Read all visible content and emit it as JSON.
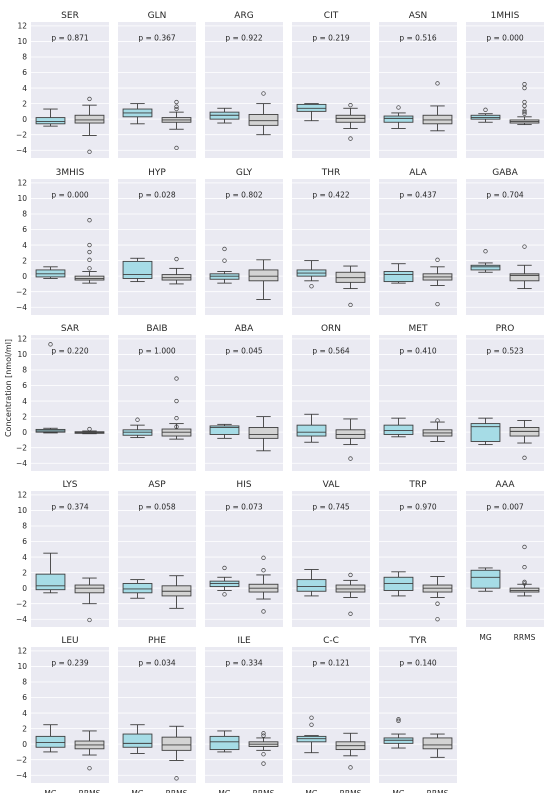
{
  "figure": {
    "ylabel": "Concentration [nmol/ml]",
    "group_colors": {
      "MG": "#a6dce6",
      "RRMS": "#d3d3d3"
    },
    "panel_bg": "#eaeaf2",
    "grid_color": "#ffffff"
  },
  "chart_data": {
    "type": "box",
    "categories": [
      "MG",
      "RRMS"
    ],
    "ylim": [
      -5,
      12.5
    ],
    "yticks": [
      -4,
      -2,
      0,
      2,
      4,
      6,
      8,
      10,
      12
    ],
    "grid": true,
    "panels": [
      {
        "title": "SER",
        "p": "p = 0.871",
        "boxes": [
          {
            "q1": -0.6,
            "med": -0.3,
            "q3": 0.2,
            "lo": -0.9,
            "hi": 1.3,
            "out": []
          },
          {
            "q1": -0.5,
            "med": -0.1,
            "q3": 0.5,
            "lo": -2.1,
            "hi": 1.8,
            "out": [
              2.6,
              -4.2
            ]
          }
        ]
      },
      {
        "title": "GLN",
        "p": "p = 0.367",
        "boxes": [
          {
            "q1": 0.3,
            "med": 0.8,
            "q3": 1.3,
            "lo": -0.6,
            "hi": 2.0,
            "out": []
          },
          {
            "q1": -0.4,
            "med": -0.1,
            "q3": 0.2,
            "lo": -1.3,
            "hi": 0.9,
            "out": [
              2.2,
              1.6,
              1.3,
              -3.7
            ]
          }
        ]
      },
      {
        "title": "ARG",
        "p": "p = 0.922",
        "boxes": [
          {
            "q1": 0.0,
            "med": 0.5,
            "q3": 0.9,
            "lo": -0.5,
            "hi": 1.4,
            "out": []
          },
          {
            "q1": -0.8,
            "med": -0.2,
            "q3": 0.6,
            "lo": -2.0,
            "hi": 2.0,
            "out": [
              3.3
            ]
          }
        ]
      },
      {
        "title": "CIT",
        "p": "p = 0.219",
        "boxes": [
          {
            "q1": 1.0,
            "med": 1.4,
            "q3": 1.9,
            "lo": -0.2,
            "hi": 2.0,
            "out": []
          },
          {
            "q1": -0.4,
            "med": 0.1,
            "q3": 0.5,
            "lo": -1.2,
            "hi": 1.4,
            "out": [
              1.8,
              -2.5
            ]
          }
        ]
      },
      {
        "title": "ASN",
        "p": "p = 0.516",
        "boxes": [
          {
            "q1": -0.4,
            "med": 0.1,
            "q3": 0.4,
            "lo": -1.2,
            "hi": 0.8,
            "out": [
              1.5
            ]
          },
          {
            "q1": -0.6,
            "med": -0.1,
            "q3": 0.5,
            "lo": -1.5,
            "hi": 1.7,
            "out": [
              4.6
            ]
          }
        ]
      },
      {
        "title": "1MHIS",
        "p": "p = 0.000",
        "boxes": [
          {
            "q1": 0.0,
            "med": 0.2,
            "q3": 0.5,
            "lo": -0.4,
            "hi": 0.7,
            "out": [
              1.2
            ]
          },
          {
            "q1": -0.5,
            "med": -0.3,
            "q3": -0.1,
            "lo": -0.7,
            "hi": 0.3,
            "out": [
              4.5,
              4.0,
              2.2,
              1.7,
              1.1,
              0.9,
              0.7
            ]
          }
        ]
      },
      {
        "title": "3MHIS",
        "p": "p = 0.000",
        "boxes": [
          {
            "q1": -0.1,
            "med": 0.3,
            "q3": 0.8,
            "lo": -0.3,
            "hi": 1.2,
            "out": []
          },
          {
            "q1": -0.5,
            "med": -0.3,
            "q3": 0.0,
            "lo": -0.9,
            "hi": 0.6,
            "out": [
              7.2,
              4.0,
              3.1,
              2.1,
              1.0
            ]
          }
        ]
      },
      {
        "title": "HYP",
        "p": "p = 0.028",
        "boxes": [
          {
            "q1": -0.3,
            "med": 0.2,
            "q3": 1.9,
            "lo": -0.7,
            "hi": 2.3,
            "out": []
          },
          {
            "q1": -0.5,
            "med": -0.2,
            "q3": 0.2,
            "lo": -1.0,
            "hi": 1.0,
            "out": [
              2.2
            ]
          }
        ]
      },
      {
        "title": "GLY",
        "p": "p = 0.802",
        "boxes": [
          {
            "q1": -0.4,
            "med": 0.0,
            "q3": 0.3,
            "lo": -0.9,
            "hi": 0.6,
            "out": [
              3.5,
              2.0
            ]
          },
          {
            "q1": -0.6,
            "med": 0.0,
            "q3": 0.8,
            "lo": -3.0,
            "hi": 2.1,
            "out": []
          }
        ]
      },
      {
        "title": "THR",
        "p": "p = 0.422",
        "boxes": [
          {
            "q1": 0.0,
            "med": 0.4,
            "q3": 0.8,
            "lo": -0.6,
            "hi": 2.0,
            "out": [
              -1.3
            ]
          },
          {
            "q1": -0.8,
            "med": -0.2,
            "q3": 0.5,
            "lo": -1.6,
            "hi": 1.3,
            "out": [
              -3.7
            ]
          }
        ]
      },
      {
        "title": "ALA",
        "p": "p = 0.437",
        "boxes": [
          {
            "q1": -0.7,
            "med": 0.2,
            "q3": 0.6,
            "lo": -0.9,
            "hi": 1.6,
            "out": []
          },
          {
            "q1": -0.5,
            "med": -0.1,
            "q3": 0.3,
            "lo": -1.2,
            "hi": 1.2,
            "out": [
              2.1,
              -3.6
            ]
          }
        ]
      },
      {
        "title": "GABA",
        "p": "p = 0.704",
        "boxes": [
          {
            "q1": 0.8,
            "med": 1.2,
            "q3": 1.4,
            "lo": 0.5,
            "hi": 1.7,
            "out": [
              3.2
            ]
          },
          {
            "q1": -0.6,
            "med": 0.1,
            "q3": 0.3,
            "lo": -1.6,
            "hi": 1.4,
            "out": [
              3.8
            ]
          }
        ]
      },
      {
        "title": "SAR",
        "p": "p = 0.220",
        "boxes": [
          {
            "q1": 0.0,
            "med": 0.15,
            "q3": 0.35,
            "lo": -0.1,
            "hi": 0.5,
            "out": [
              11.3
            ]
          },
          {
            "q1": -0.15,
            "med": -0.05,
            "q3": 0.05,
            "lo": -0.2,
            "hi": 0.15,
            "out": [
              0.4
            ]
          }
        ]
      },
      {
        "title": "BAIB",
        "p": "p = 1.000",
        "boxes": [
          {
            "q1": -0.4,
            "med": 0.0,
            "q3": 0.3,
            "lo": -0.7,
            "hi": 0.9,
            "out": [
              1.6
            ]
          },
          {
            "q1": -0.5,
            "med": 0.0,
            "q3": 0.4,
            "lo": -0.9,
            "hi": 1.1,
            "out": [
              6.9,
              4.0,
              1.8,
              0.7
            ]
          }
        ]
      },
      {
        "title": "ABA",
        "p": "p = 0.045",
        "boxes": [
          {
            "q1": -0.3,
            "med": 0.6,
            "q3": 0.8,
            "lo": -0.8,
            "hi": 1.0,
            "out": []
          },
          {
            "q1": -0.8,
            "med": -0.3,
            "q3": 0.6,
            "lo": -2.4,
            "hi": 2.0,
            "out": []
          }
        ]
      },
      {
        "title": "ORN",
        "p": "p = 0.564",
        "boxes": [
          {
            "q1": -0.5,
            "med": 0.0,
            "q3": 0.9,
            "lo": -1.3,
            "hi": 2.3,
            "out": []
          },
          {
            "q1": -0.8,
            "med": -0.3,
            "q3": 0.3,
            "lo": -1.6,
            "hi": 1.7,
            "out": [
              -3.4
            ]
          }
        ]
      },
      {
        "title": "MET",
        "p": "p = 0.410",
        "boxes": [
          {
            "q1": -0.3,
            "med": 0.2,
            "q3": 0.9,
            "lo": -0.6,
            "hi": 1.8,
            "out": []
          },
          {
            "q1": -0.5,
            "med": -0.1,
            "q3": 0.3,
            "lo": -1.2,
            "hi": 1.3,
            "out": [
              1.5
            ]
          }
        ]
      },
      {
        "title": "PRO",
        "p": "p = 0.523",
        "boxes": [
          {
            "q1": -1.2,
            "med": 0.7,
            "q3": 1.1,
            "lo": -1.6,
            "hi": 1.8,
            "out": []
          },
          {
            "q1": -0.5,
            "med": 0.1,
            "q3": 0.6,
            "lo": -1.4,
            "hi": 1.5,
            "out": [
              -3.3
            ]
          }
        ]
      },
      {
        "title": "LYS",
        "p": "p = 0.374",
        "boxes": [
          {
            "q1": -0.2,
            "med": 0.3,
            "q3": 1.8,
            "lo": -0.6,
            "hi": 4.5,
            "out": []
          },
          {
            "q1": -0.6,
            "med": 0.0,
            "q3": 0.4,
            "lo": -2.0,
            "hi": 1.3,
            "out": [
              -4.1
            ]
          }
        ]
      },
      {
        "title": "ASP",
        "p": "p = 0.058",
        "boxes": [
          {
            "q1": -0.6,
            "med": -0.1,
            "q3": 0.6,
            "lo": -1.3,
            "hi": 1.1,
            "out": []
          },
          {
            "q1": -1.0,
            "med": -0.4,
            "q3": 0.3,
            "lo": -2.6,
            "hi": 1.6,
            "out": []
          }
        ]
      },
      {
        "title": "HIS",
        "p": "p = 0.073",
        "boxes": [
          {
            "q1": 0.2,
            "med": 0.6,
            "q3": 0.9,
            "lo": -0.3,
            "hi": 1.4,
            "out": [
              2.6,
              -0.8
            ]
          },
          {
            "q1": -0.5,
            "med": 0.0,
            "q3": 0.5,
            "lo": -1.4,
            "hi": 1.7,
            "out": [
              3.9,
              2.3,
              -3.0
            ]
          }
        ]
      },
      {
        "title": "VAL",
        "p": "p = 0.745",
        "boxes": [
          {
            "q1": -0.4,
            "med": 0.2,
            "q3": 1.1,
            "lo": -1.0,
            "hi": 2.4,
            "out": []
          },
          {
            "q1": -0.5,
            "med": -0.1,
            "q3": 0.4,
            "lo": -1.2,
            "hi": 1.0,
            "out": [
              1.7,
              -3.3
            ]
          }
        ]
      },
      {
        "title": "TRP",
        "p": "p = 0.970",
        "boxes": [
          {
            "q1": -0.3,
            "med": 0.6,
            "q3": 1.4,
            "lo": -1.0,
            "hi": 2.1,
            "out": []
          },
          {
            "q1": -0.5,
            "med": 0.0,
            "q3": 0.4,
            "lo": -1.2,
            "hi": 1.5,
            "out": [
              -2.0,
              -4.0
            ]
          }
        ]
      },
      {
        "title": "AAA",
        "p": "p = 0.007",
        "boxes": [
          {
            "q1": 0.0,
            "med": 1.4,
            "q3": 2.3,
            "lo": -0.4,
            "hi": 2.6,
            "out": []
          },
          {
            "q1": -0.5,
            "med": -0.3,
            "q3": 0.0,
            "lo": -1.0,
            "hi": 0.5,
            "out": [
              5.3,
              2.7,
              0.8,
              0.6
            ]
          }
        ]
      },
      {
        "title": "LEU",
        "p": "p = 0.239",
        "boxes": [
          {
            "q1": -0.4,
            "med": 0.2,
            "q3": 1.0,
            "lo": -1.0,
            "hi": 2.5,
            "out": []
          },
          {
            "q1": -0.6,
            "med": -0.1,
            "q3": 0.4,
            "lo": -1.4,
            "hi": 1.7,
            "out": [
              -3.1
            ]
          }
        ]
      },
      {
        "title": "PHE",
        "p": "p = 0.034",
        "boxes": [
          {
            "q1": -0.4,
            "med": 0.1,
            "q3": 1.3,
            "lo": -1.2,
            "hi": 2.5,
            "out": []
          },
          {
            "q1": -0.8,
            "med": -0.1,
            "q3": 0.9,
            "lo": -2.1,
            "hi": 2.3,
            "out": [
              -4.4
            ]
          }
        ]
      },
      {
        "title": "ILE",
        "p": "p = 0.334",
        "boxes": [
          {
            "q1": -0.7,
            "med": 0.3,
            "q3": 1.0,
            "lo": -1.0,
            "hi": 1.7,
            "out": []
          },
          {
            "q1": -0.3,
            "med": 0.0,
            "q3": 0.3,
            "lo": -0.8,
            "hi": 0.8,
            "out": [
              1.4,
              1.1,
              -1.3,
              -2.5
            ]
          }
        ]
      },
      {
        "title": "C-C",
        "p": "p = 0.121",
        "boxes": [
          {
            "q1": 0.3,
            "med": 0.7,
            "q3": 1.0,
            "lo": -1.1,
            "hi": 1.1,
            "out": [
              3.4,
              2.5
            ]
          },
          {
            "q1": -0.7,
            "med": -0.2,
            "q3": 0.3,
            "lo": -1.5,
            "hi": 1.4,
            "out": [
              -3.0
            ]
          }
        ]
      },
      {
        "title": "TYR",
        "p": "p = 0.140",
        "boxes": [
          {
            "q1": 0.1,
            "med": 0.5,
            "q3": 0.8,
            "lo": -0.5,
            "hi": 1.3,
            "out": [
              3.2,
              3.0
            ]
          },
          {
            "q1": -0.6,
            "med": -0.1,
            "q3": 0.8,
            "lo": -1.7,
            "hi": 1.3,
            "out": []
          }
        ]
      }
    ]
  }
}
